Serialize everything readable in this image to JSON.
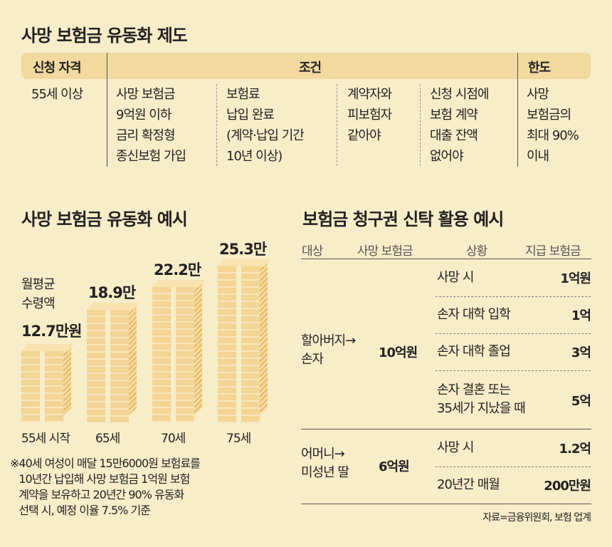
{
  "section1": {
    "title": "사망 보험금 유동화 제도",
    "headers": [
      "신청 자격",
      "조건",
      "한도"
    ],
    "eligibility": "55세 이상",
    "conditions": [
      "사망 보험금\n9억원 이하\n금리 확정형\n종신보험 가입",
      "보험료\n납입 완료\n(계약·납입 기간\n10년 이상)",
      "계약자와\n피보험자\n같아야",
      "신청 시점에\n보험 계약\n대출 잔액\n없어야"
    ],
    "limit": "사망\n보험금의\n최대 90%\n이내"
  },
  "section2": {
    "title": "사망 보험금 유동화 예시",
    "label": "월평균\n수령액",
    "footnote": "※40세 여성이 매달 15만6000원 보험료를\n   10년간 납입해 사망 보험금 1억원 보험\n   계약을 보유하고 20년간 90% 유동화\n   선택 시, 예정 이율 7.5% 기준"
  },
  "chart_data": {
    "type": "bar",
    "categories": [
      "55세 시작",
      "65세",
      "70세",
      "75세"
    ],
    "values": [
      12.7,
      18.9,
      22.2,
      25.3
    ],
    "data_labels": [
      "12.7만원",
      "18.9만",
      "22.2만",
      "25.3만"
    ],
    "colors": {
      "coin": "#f3d596",
      "side": "#e9c070"
    }
  },
  "section3": {
    "title": "보험금 청구권 신탁 활용 예시",
    "headers": [
      "대상",
      "사망 보험금",
      "상황",
      "지급 보험금"
    ],
    "groups": [
      {
        "target": "할아버지→\n손자",
        "amount": "10억원",
        "rows": [
          {
            "situation": "사망 시",
            "payout": "1억원"
          },
          {
            "situation": "손자 대학 입학",
            "payout": "1억"
          },
          {
            "situation": "손자 대학 졸업",
            "payout": "3억"
          },
          {
            "situation": "손자 결혼 또는\n35세가 지났을 때",
            "payout": "5억"
          }
        ]
      },
      {
        "target": "어머니→\n미성년 딸",
        "amount": "6억원",
        "rows": [
          {
            "situation": "사망 시",
            "payout": "1.2억"
          },
          {
            "situation": "20년간 매월",
            "payout": "200만원"
          }
        ]
      }
    ],
    "source": "자료=금융위원회, 보험 업계"
  },
  "colors": {
    "background": "#f8edc9",
    "header_band": "#f2d9a0"
  }
}
